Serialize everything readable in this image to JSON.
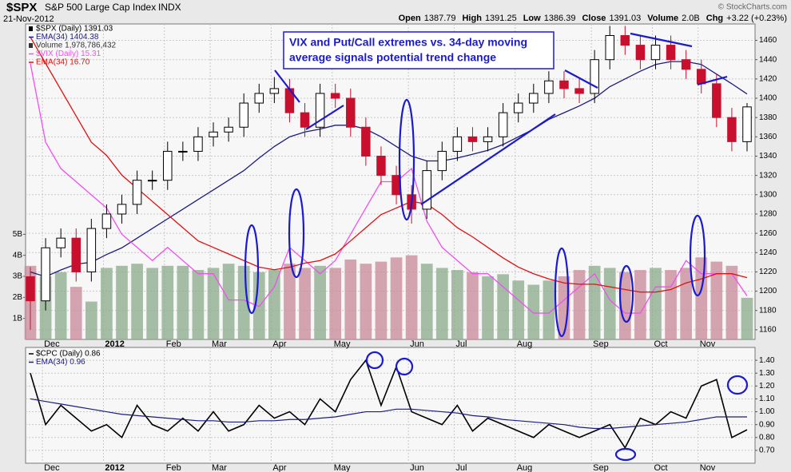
{
  "header": {
    "symbol": "$SPX",
    "name": "S&P 500 Large Cap Index",
    "exchange": "INDX",
    "date": "21-Nov-2012",
    "source": "© StockCharts.com",
    "quote": [
      {
        "label": "Open",
        "value": 1387.79
      },
      {
        "label": "High",
        "value": 1391.25
      },
      {
        "label": "Low",
        "value": 1386.39
      },
      {
        "label": "Close",
        "value": 1391.03
      },
      {
        "label": "Volume",
        "value": "2.0B"
      },
      {
        "label": "Chg",
        "value": "+3.22 (+0.23%)"
      }
    ]
  },
  "chart_data": [
    {
      "type": "candlestick",
      "name": "$SPX (Daily) 1391.03",
      "annotation": [
        "VIX and Put/Call extremes vs. 34-day moving",
        "average signals potential trend change"
      ],
      "categories": [
        null,
        "Dec",
        null,
        null,
        null,
        "2012",
        null,
        null,
        null,
        "Feb",
        null,
        null,
        "Mar",
        null,
        null,
        null,
        "Apr",
        null,
        null,
        null,
        "May",
        null,
        null,
        null,
        null,
        "Jun",
        null,
        null,
        "Jul",
        null,
        null,
        null,
        "Aug",
        null,
        null,
        null,
        null,
        "Sep",
        null,
        null,
        null,
        "Oct",
        null,
        null,
        "Nov",
        null,
        null,
        null
      ],
      "open": [
        1215,
        1190,
        1245,
        1255,
        1220,
        1265,
        1280,
        1290,
        1315,
        1315,
        1345,
        1345,
        1360,
        1365,
        1370,
        1395,
        1405,
        1410,
        1385,
        1370,
        1405,
        1400,
        1370,
        1340,
        1320,
        1300,
        1285,
        1325,
        1345,
        1360,
        1355,
        1360,
        1385,
        1395,
        1405,
        1418,
        1410,
        1405,
        1440,
        1465,
        1455,
        1440,
        1455,
        1440,
        1430,
        1415,
        1380,
        1355
      ],
      "high": [
        1225,
        1255,
        1265,
        1265,
        1275,
        1290,
        1300,
        1325,
        1325,
        1355,
        1355,
        1370,
        1375,
        1380,
        1405,
        1415,
        1422,
        1420,
        1395,
        1415,
        1415,
        1410,
        1380,
        1350,
        1330,
        1310,
        1335,
        1355,
        1370,
        1370,
        1370,
        1395,
        1405,
        1415,
        1428,
        1428,
        1420,
        1450,
        1475,
        1475,
        1465,
        1465,
        1465,
        1450,
        1440,
        1425,
        1390,
        1395
      ],
      "low": [
        1160,
        1180,
        1235,
        1210,
        1210,
        1255,
        1270,
        1280,
        1305,
        1305,
        1335,
        1335,
        1350,
        1355,
        1360,
        1385,
        1395,
        1375,
        1360,
        1360,
        1390,
        1360,
        1330,
        1310,
        1290,
        1270,
        1275,
        1315,
        1335,
        1345,
        1345,
        1350,
        1375,
        1385,
        1395,
        1400,
        1395,
        1395,
        1430,
        1445,
        1430,
        1430,
        1430,
        1420,
        1405,
        1370,
        1345,
        1345
      ],
      "close": [
        1190,
        1245,
        1255,
        1220,
        1265,
        1280,
        1290,
        1315,
        1315,
        1345,
        1345,
        1360,
        1365,
        1370,
        1395,
        1405,
        1410,
        1385,
        1370,
        1405,
        1400,
        1370,
        1340,
        1320,
        1300,
        1285,
        1325,
        1345,
        1360,
        1355,
        1360,
        1385,
        1395,
        1405,
        1418,
        1410,
        1405,
        1440,
        1465,
        1455,
        1440,
        1455,
        1440,
        1430,
        1415,
        1380,
        1355,
        1391.03
      ],
      "ylim": [
        1150,
        1477
      ],
      "yticks": [
        1160,
        1180,
        1200,
        1220,
        1240,
        1260,
        1280,
        1300,
        1320,
        1340,
        1360,
        1380,
        1400,
        1420,
        1440,
        1460
      ],
      "grid": true,
      "series": [
        {
          "name": "EMA(34) 1404.38",
          "color": "#1c1c80",
          "values": [
            1220,
            1215,
            1222,
            1228,
            1230,
            1238,
            1245,
            1255,
            1265,
            1275,
            1285,
            1295,
            1305,
            1315,
            1325,
            1338,
            1350,
            1360,
            1365,
            1368,
            1372,
            1372,
            1368,
            1360,
            1350,
            1340,
            1335,
            1335,
            1338,
            1342,
            1346,
            1352,
            1360,
            1368,
            1378,
            1385,
            1392,
            1400,
            1412,
            1420,
            1428,
            1435,
            1438,
            1438,
            1435,
            1425,
            1415,
            1404.38
          ]
        },
        {
          "name": "$VIX (Daily) 15.31",
          "color": "#f050f0",
          "ylim": [
            12,
            36
          ],
          "values": [
            33,
            27,
            25,
            24,
            23,
            22,
            20,
            19,
            18,
            19,
            18,
            17,
            17,
            15,
            15,
            14.5,
            16,
            19,
            18,
            17,
            18,
            20,
            22,
            24,
            24,
            25,
            21,
            19,
            18,
            17,
            17,
            16,
            15,
            14,
            14,
            15,
            16,
            17,
            15,
            14,
            14,
            16,
            16,
            18,
            17,
            17,
            17,
            15.31
          ]
        },
        {
          "name": "EMA(34) 16.70",
          "color": "#e01010",
          "ylim": [
            12,
            36
          ],
          "values": [
            35,
            33,
            31,
            29,
            27,
            26,
            24.5,
            23.5,
            22.5,
            21.5,
            20.5,
            19.5,
            19,
            18.5,
            18,
            17.5,
            17.3,
            17.5,
            17.8,
            18,
            18.5,
            19.5,
            20.5,
            21.5,
            22,
            22.5,
            22.3,
            21.5,
            20.5,
            19.8,
            19,
            18.2,
            17.5,
            17,
            16.6,
            16.3,
            16.2,
            16.2,
            16,
            15.8,
            15.6,
            15.6,
            15.8,
            16.3,
            16.6,
            17,
            17,
            16.7
          ]
        }
      ],
      "volume": {
        "name": "Volume 1,978,786,432",
        "up_color": "#8fae8f",
        "down_color": "#c98f9c",
        "values": [
          3500000000,
          3000000000,
          3200000000,
          2500000000,
          1800000000,
          3400000000,
          3500000000,
          3600000000,
          3400000000,
          3500000000,
          3500000000,
          3300000000,
          3400000000,
          3600000000,
          3500000000,
          3200000000,
          3300000000,
          3600000000,
          3400000000,
          3500000000,
          3400000000,
          3800000000,
          3600000000,
          3700000000,
          3900000000,
          4000000000,
          3600000000,
          3400000000,
          3300000000,
          3200000000,
          3000000000,
          3100000000,
          2800000000,
          2600000000,
          2800000000,
          3000000000,
          3300000000,
          3500000000,
          3400000000,
          3200000000,
          3300000000,
          3400000000,
          3300000000,
          3400000000,
          3900000000,
          3700000000,
          3500000000,
          1978786432
        ],
        "ylim": [
          0,
          15000000000
        ],
        "yticks": [
          {
            "value": 1000000000,
            "label": "1B"
          },
          {
            "value": 2000000000,
            "label": "2B"
          },
          {
            "value": 3000000000,
            "label": "3B"
          },
          {
            "value": 4000000000,
            "label": "4B"
          },
          {
            "value": 5000000000,
            "label": "5B"
          }
        ]
      }
    },
    {
      "type": "line",
      "categories": [
        null,
        "Dec",
        null,
        null,
        null,
        "2012",
        null,
        null,
        null,
        "Feb",
        null,
        null,
        "Mar",
        null,
        null,
        null,
        "Apr",
        null,
        null,
        null,
        "May",
        null,
        null,
        null,
        null,
        "Jun",
        null,
        null,
        "Jul",
        null,
        null,
        null,
        "Aug",
        null,
        null,
        null,
        null,
        "Sep",
        null,
        null,
        null,
        "Oct",
        null,
        null,
        "Nov",
        null,
        null,
        null
      ],
      "series": [
        {
          "name": "$CPC (Daily) 0.86",
          "color": "#000000",
          "values": [
            1.3,
            0.9,
            1.05,
            0.95,
            0.85,
            0.9,
            0.8,
            1.05,
            0.9,
            0.85,
            0.95,
            0.85,
            1.0,
            0.85,
            0.9,
            1.05,
            0.95,
            1.0,
            0.9,
            1.1,
            1.0,
            1.25,
            1.4,
            1.05,
            1.35,
            1.0,
            0.95,
            0.9,
            1.05,
            0.85,
            0.95,
            0.9,
            0.85,
            0.8,
            0.9,
            0.85,
            0.8,
            0.85,
            0.9,
            0.72,
            0.95,
            0.9,
            1.0,
            0.95,
            1.2,
            1.25,
            0.8,
            0.86
          ]
        },
        {
          "name": "EMA(34) 0.96",
          "color": "#1c1c80",
          "values": [
            1.1,
            1.08,
            1.06,
            1.04,
            1.02,
            1.0,
            0.98,
            0.97,
            0.96,
            0.95,
            0.94,
            0.93,
            0.93,
            0.92,
            0.92,
            0.93,
            0.93,
            0.94,
            0.94,
            0.95,
            0.96,
            0.98,
            1.0,
            1.0,
            1.02,
            1.02,
            1.01,
            1.0,
            0.99,
            0.97,
            0.96,
            0.94,
            0.93,
            0.92,
            0.91,
            0.9,
            0.88,
            0.87,
            0.87,
            0.88,
            0.89,
            0.9,
            0.91,
            0.92,
            0.94,
            0.96,
            0.96,
            0.96
          ]
        }
      ],
      "ylim": [
        0.6,
        1.5
      ],
      "yticks": [
        {
          "value": 0.7,
          "label": "0.70"
        },
        {
          "value": 0.8,
          "label": "0.80"
        },
        {
          "value": 0.9,
          "label": "0.90"
        },
        {
          "value": 1.0,
          "label": "1.00"
        },
        {
          "value": 1.1,
          "label": "1.10"
        },
        {
          "value": 1.2,
          "label": "1.20"
        },
        {
          "value": 1.3,
          "label": "1.30"
        },
        {
          "value": 1.4,
          "label": "1.40"
        }
      ],
      "grid": true
    }
  ]
}
